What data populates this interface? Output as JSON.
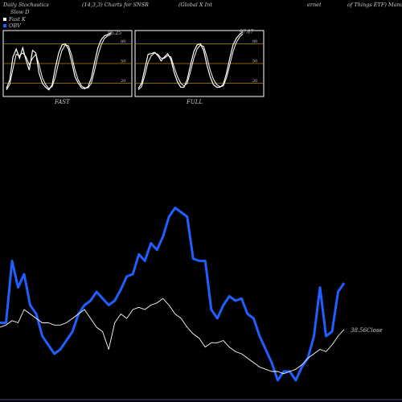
{
  "header": {
    "segments": [
      "Daily Stochastics",
      "(14,3,3) Charts for SNSR",
      "(Global X Int",
      "ernet",
      "of Things ETF) Manufa"
    ]
  },
  "legend": [
    {
      "label": "Slow D",
      "color": "#000000"
    },
    {
      "label": "Fast K",
      "color": "#ffffff"
    },
    {
      "label": "OBV",
      "color": "#1f5fff"
    }
  ],
  "colors": {
    "background": "#000000",
    "panel_border": "#ffffff",
    "guide_lines": "#b8860b",
    "stoch_lines": "#ffffff",
    "obv": "#1f5fff",
    "price": "#ffffff",
    "baseline": "#222244"
  },
  "chart_data": [
    {
      "type": "line",
      "title": "FAST",
      "yticks": [
        20,
        50,
        80
      ],
      "ylim": [
        0,
        100
      ],
      "value_label": "96.25",
      "series": [
        {
          "name": "Fast K",
          "values": [
            12,
            25,
            60,
            72,
            58,
            74,
            55,
            40,
            70,
            66,
            35,
            20,
            14,
            10,
            18,
            44,
            66,
            78,
            80,
            72,
            52,
            30,
            20,
            13,
            12,
            15,
            28,
            52,
            74,
            86,
            92,
            94,
            96.25
          ]
        },
        {
          "name": "Slow D",
          "values": [
            10,
            18,
            42,
            64,
            62,
            66,
            60,
            48,
            58,
            64,
            48,
            28,
            18,
            12,
            15,
            30,
            52,
            70,
            78,
            77,
            62,
            40,
            25,
            16,
            13,
            13,
            20,
            40,
            62,
            78,
            88,
            92,
            94
          ]
        }
      ]
    },
    {
      "type": "line",
      "title": "FULL",
      "yticks": [
        20,
        50,
        80
      ],
      "ylim": [
        0,
        100
      ],
      "value_label": "97.87",
      "series": [
        {
          "name": "Full K",
          "values": [
            12,
            20,
            42,
            64,
            65,
            67,
            62,
            54,
            60,
            65,
            56,
            36,
            22,
            14,
            14,
            26,
            48,
            68,
            78,
            80,
            70,
            48,
            30,
            18,
            14,
            14,
            18,
            35,
            58,
            78,
            88,
            94,
            97.87
          ]
        },
        {
          "name": "Full D",
          "values": [
            10,
            15,
            32,
            52,
            62,
            66,
            64,
            58,
            58,
            62,
            60,
            44,
            30,
            20,
            16,
            20,
            38,
            58,
            72,
            78,
            76,
            60,
            40,
            26,
            18,
            15,
            16,
            28,
            48,
            68,
            82,
            90,
            95
          ]
        }
      ]
    },
    {
      "type": "line",
      "close_label": "38.56Close",
      "series": [
        {
          "name": "OBV",
          "values": [
            34,
            34,
            62,
            50,
            56,
            42,
            38,
            28,
            24,
            20,
            22,
            26,
            30,
            38,
            42,
            44,
            48,
            45,
            42,
            44,
            49,
            55,
            56,
            65,
            62,
            70,
            67,
            73,
            82,
            86,
            84,
            82,
            63,
            62,
            62,
            40,
            36,
            42,
            46,
            44,
            45,
            38,
            36,
            28,
            22,
            16,
            8,
            12,
            12,
            8,
            14,
            18,
            28,
            50,
            28,
            30,
            48,
            52
          ]
        },
        {
          "name": "Price",
          "values": [
            32,
            33,
            35,
            34,
            40,
            38,
            36,
            34,
            34,
            33,
            33,
            34,
            36,
            38,
            40,
            36,
            32,
            30,
            22,
            34,
            38,
            36,
            40,
            41,
            40,
            42,
            43,
            45,
            42,
            38,
            36,
            32,
            29,
            27,
            23,
            25,
            25,
            26,
            23,
            21,
            20,
            18,
            16,
            14,
            13,
            12,
            12,
            11,
            12,
            13,
            15,
            18,
            20,
            22,
            21,
            24,
            28,
            31
          ]
        }
      ]
    }
  ]
}
